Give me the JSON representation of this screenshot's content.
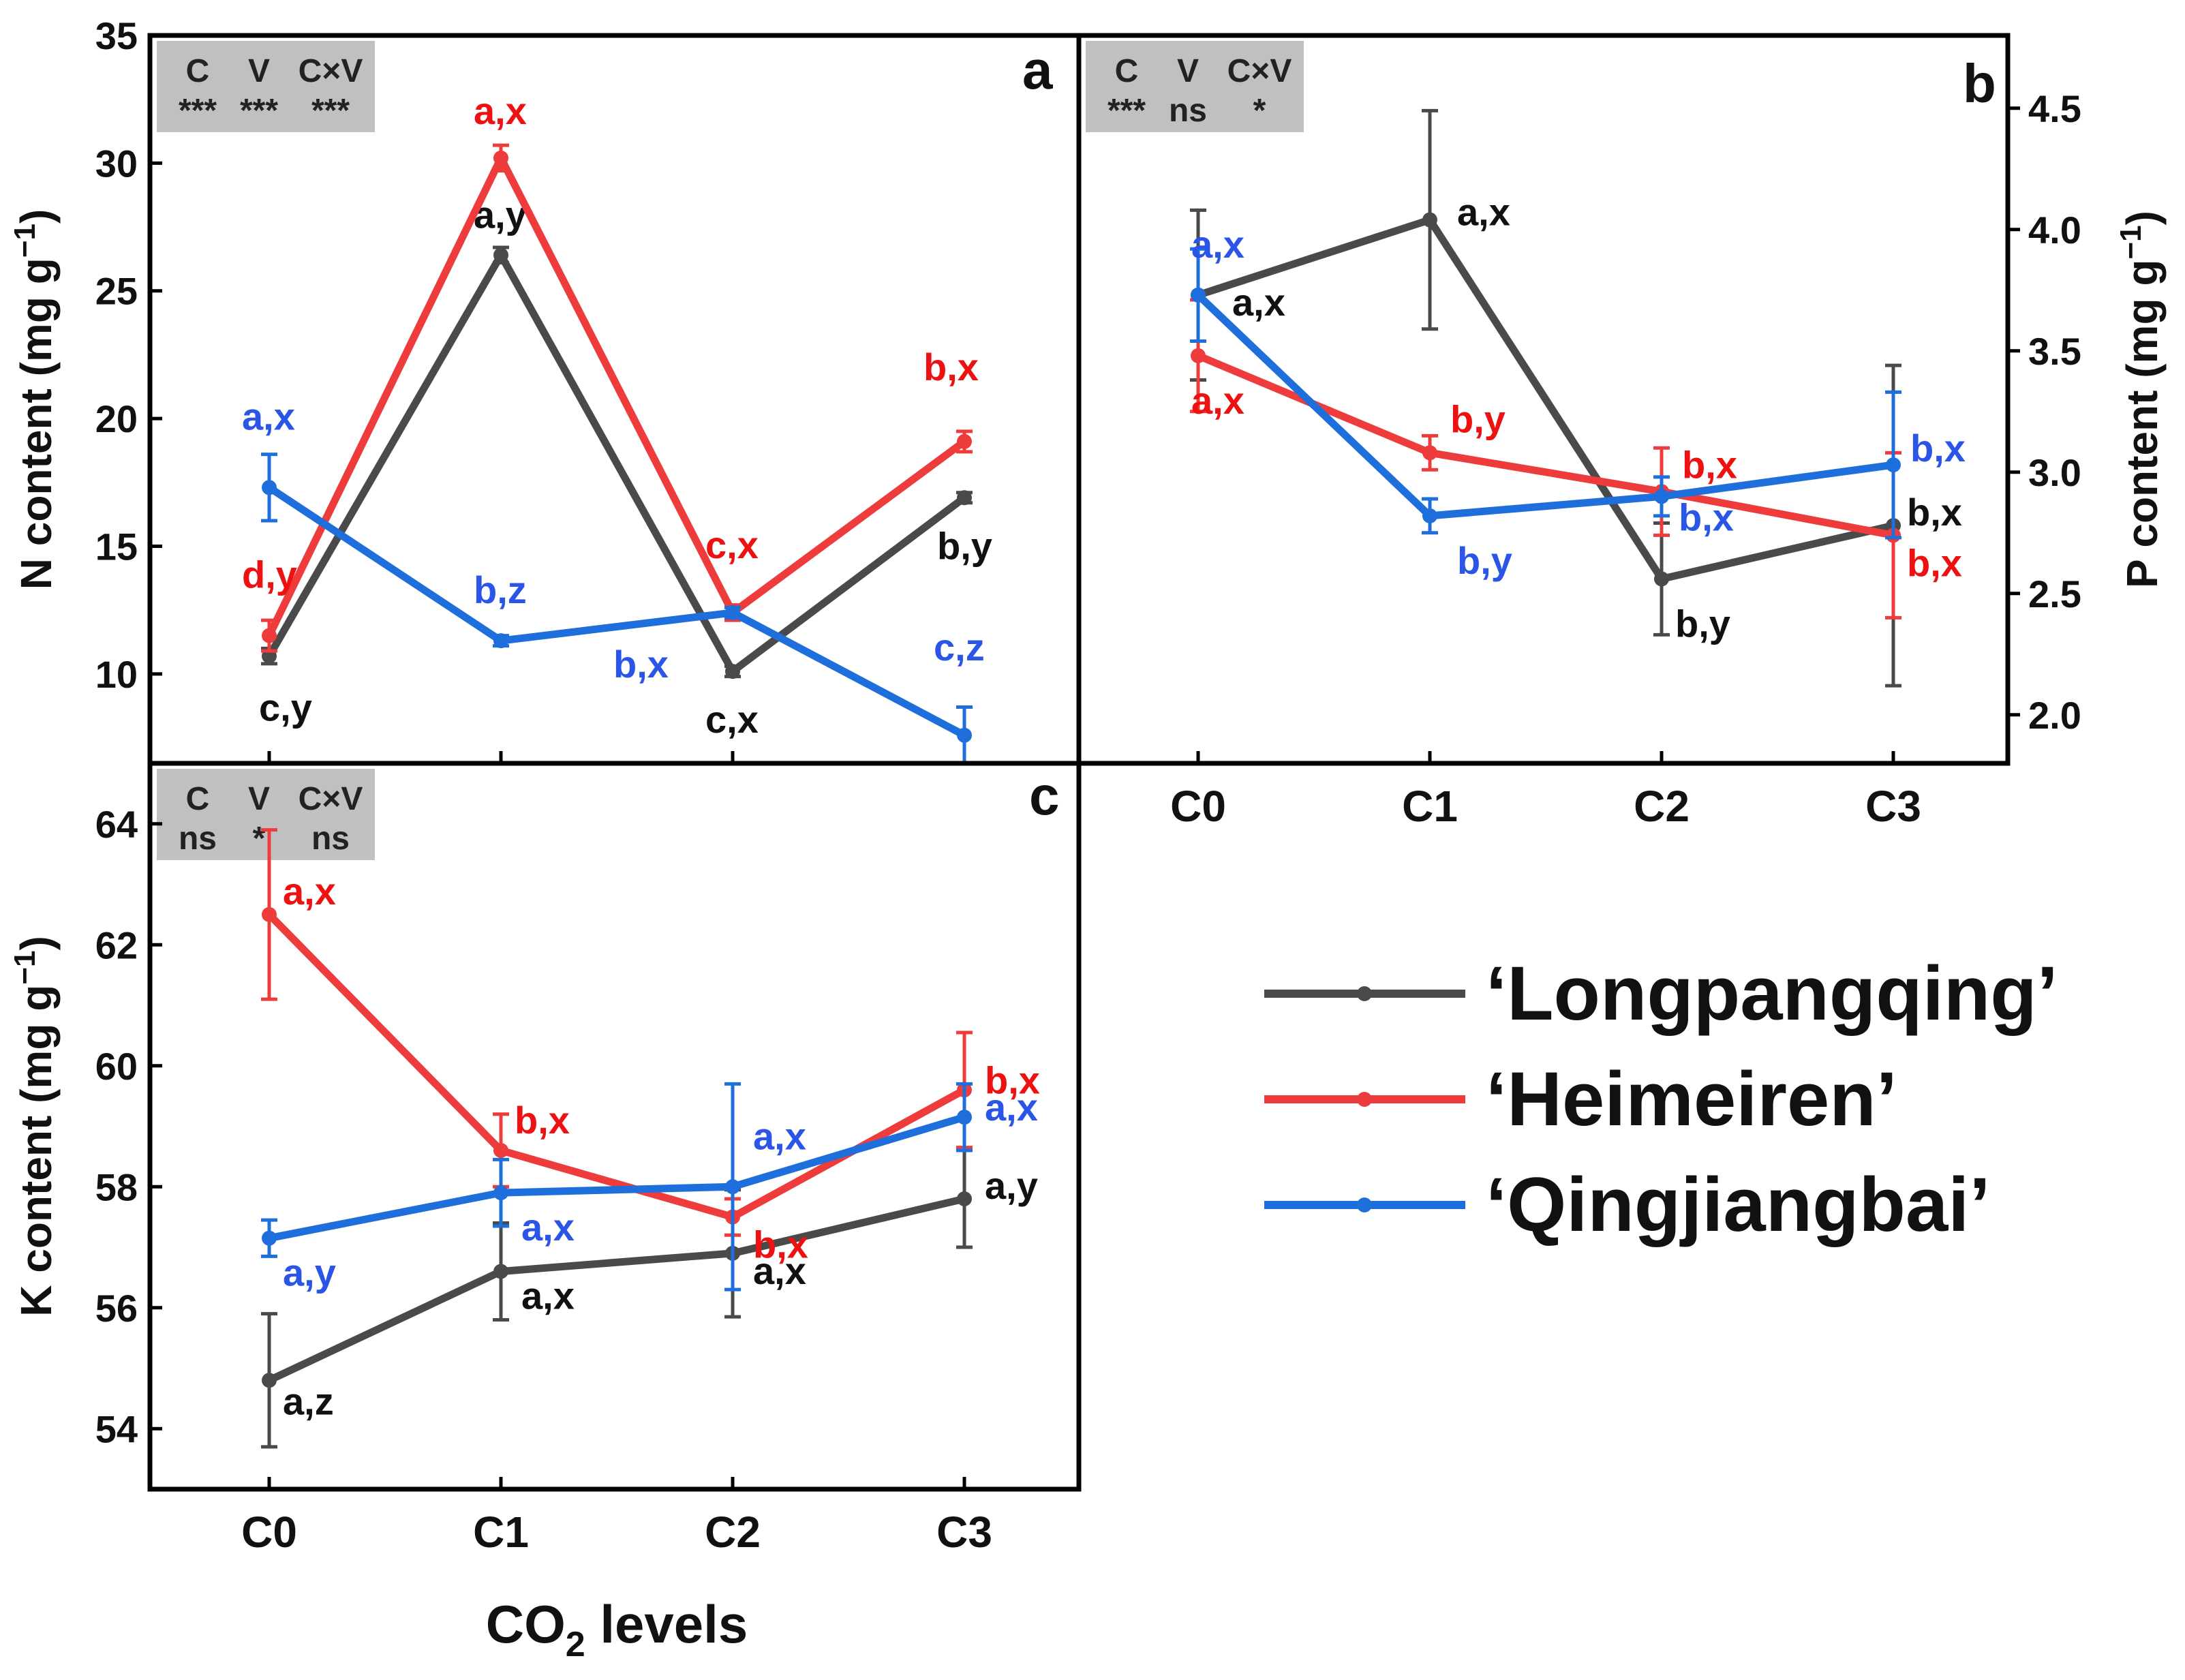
{
  "colors": {
    "Longpangqing": "#4a4a4a",
    "Heimeiren": "#ee3b3b",
    "Qingjiangbai": "#1e6fdc",
    "letter_black": "#111111",
    "letter_red": "#ee1111",
    "letter_blue": "#2b55e6",
    "stats_box": "#c0c0c0"
  },
  "xlabel": {
    "pre": "CO",
    "sub": "2",
    "post": " levels"
  },
  "legend": [
    {
      "key": "Longpangqing",
      "label": "‘Longpangqing’"
    },
    {
      "key": "Heimeiren",
      "label": "‘Heimeiren’"
    },
    {
      "key": "Qingjiangbai",
      "label": "‘Qingjiangbai’"
    }
  ],
  "chart_data": [
    {
      "panel": "a",
      "type": "line",
      "ylabel": "N content (mg g⁻¹)",
      "ylabel_main": "N content (mg g",
      "ylabel_sup": "−1",
      "ylim": [
        6.5,
        35
      ],
      "yticks": [
        10,
        15,
        20,
        25,
        30,
        35
      ],
      "categories": [
        "C0",
        "C1",
        "C2",
        "C3"
      ],
      "show_xtick_labels": false,
      "stats": {
        "headers": [
          "C",
          "V",
          "C×V"
        ],
        "values": [
          "***",
          "***",
          "***"
        ]
      },
      "series": [
        {
          "name": "‘Longpangqing’",
          "values": [
            10.7,
            26.4,
            10.1,
            16.9
          ],
          "err": [
            0.3,
            0.3,
            0.2,
            0.2
          ],
          "letters": [
            "c,y",
            "a,y",
            "c,x",
            "b,y"
          ]
        },
        {
          "name": "‘Heimeiren’",
          "values": [
            11.5,
            30.2,
            12.4,
            19.1
          ],
          "err": [
            0.6,
            0.5,
            0.3,
            0.4
          ],
          "letters": [
            "d,y",
            "a,x",
            "c,x",
            "b,x"
          ]
        },
        {
          "name": "‘Qingjiangbai’",
          "values": [
            17.3,
            11.3,
            12.4,
            7.6
          ],
          "err": [
            1.3,
            0.2,
            0.2,
            1.1
          ],
          "letters": [
            "a,x",
            "b,z",
            "b,x",
            "c,z"
          ]
        }
      ]
    },
    {
      "panel": "b",
      "type": "line",
      "ylabel": "P content (mg g⁻¹)",
      "ylabel_main": "P content (mg g",
      "ylabel_sup": "−1",
      "ylim": [
        1.8,
        4.8
      ],
      "yticks": [
        2.0,
        2.5,
        3.0,
        3.5,
        4.0,
        4.5
      ],
      "categories": [
        "C0",
        "C1",
        "C2",
        "C3"
      ],
      "show_xtick_labels": true,
      "stats": {
        "headers": [
          "C",
          "V",
          "C×V"
        ],
        "values": [
          "***",
          "ns",
          "*"
        ]
      },
      "series": [
        {
          "name": "‘Longpangqing’",
          "values": [
            3.73,
            4.04,
            2.56,
            2.78
          ],
          "err": [
            0.35,
            0.45,
            0.23,
            0.66
          ],
          "letters": [
            "a,x",
            "a,x",
            "b,y",
            "b,x"
          ]
        },
        {
          "name": "‘Heimeiren’",
          "values": [
            3.48,
            3.08,
            2.92,
            2.74
          ],
          "err": [
            0.23,
            0.07,
            0.18,
            0.34
          ],
          "letters": [
            "a,x",
            "b,y",
            "b,x",
            "b,x"
          ]
        },
        {
          "name": "‘Qingjiangbai’",
          "values": [
            3.73,
            2.82,
            2.9,
            3.03
          ],
          "err": [
            0.19,
            0.07,
            0.08,
            0.3
          ],
          "letters": [
            "a,x",
            "b,y",
            "b,x",
            "b,x"
          ]
        }
      ]
    },
    {
      "panel": "c",
      "type": "line",
      "ylabel": "K content (mg g⁻¹)",
      "ylabel_main": "K content (mg g",
      "ylabel_sup": "−1",
      "ylim": [
        53,
        65
      ],
      "yticks": [
        54,
        56,
        58,
        60,
        62,
        64
      ],
      "categories": [
        "C0",
        "C1",
        "C2",
        "C3"
      ],
      "show_xtick_labels": true,
      "stats": {
        "headers": [
          "C",
          "V",
          "C×V"
        ],
        "values": [
          "ns",
          "*",
          "ns"
        ]
      },
      "series": [
        {
          "name": "‘Longpangqing’",
          "values": [
            54.8,
            56.6,
            56.9,
            57.8
          ],
          "err": [
            1.1,
            0.8,
            1.05,
            0.8
          ],
          "letters": [
            "a,z",
            "a,x",
            "a,x",
            "a,y"
          ]
        },
        {
          "name": "‘Heimeiren’",
          "values": [
            62.5,
            58.6,
            57.5,
            59.6
          ],
          "err": [
            1.4,
            0.6,
            0.3,
            0.95
          ],
          "letters": [
            "a,x",
            "b,x",
            "b,x",
            "b,x"
          ]
        },
        {
          "name": "‘Qingjiangbai’",
          "values": [
            57.15,
            57.9,
            58.0,
            59.15
          ],
          "err": [
            0.3,
            0.55,
            1.7,
            0.55
          ],
          "letters": [
            "a,y",
            "a,x",
            "a,x",
            "a,x"
          ]
        }
      ]
    }
  ]
}
